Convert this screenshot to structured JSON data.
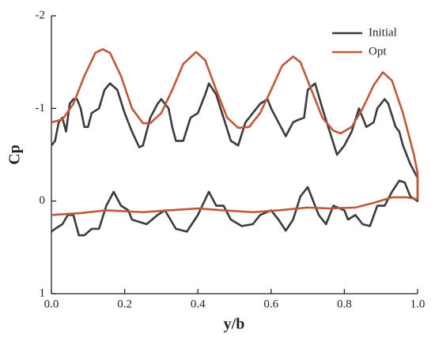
{
  "chart_data": {
    "type": "line",
    "xlabel": "y/b",
    "ylabel": "Cp",
    "xlim": [
      0,
      1
    ],
    "ylim": [
      -2,
      1
    ],
    "y_inverted": true,
    "xticks": [
      {
        "value": 0,
        "label": "0.0"
      },
      0.2,
      0.4,
      0.6,
      0.8,
      {
        "value": 1,
        "label": "1.0"
      }
    ],
    "yticks": [
      -2,
      -1,
      0,
      1
    ],
    "grid": false,
    "legend": "upper right",
    "series": [
      {
        "name": "Initial",
        "color": "#3b3b3f",
        "x": [
          0.0,
          0.01,
          0.02,
          0.03,
          0.04,
          0.05,
          0.06,
          0.07,
          0.08,
          0.09,
          0.1,
          0.11,
          0.13,
          0.145,
          0.16,
          0.18,
          0.2,
          0.22,
          0.24,
          0.25,
          0.27,
          0.29,
          0.3,
          0.32,
          0.33,
          0.34,
          0.36,
          0.38,
          0.4,
          0.42,
          0.43,
          0.45,
          0.47,
          0.49,
          0.51,
          0.53,
          0.55,
          0.57,
          0.59,
          0.6,
          0.62,
          0.64,
          0.66,
          0.67,
          0.69,
          0.7,
          0.72,
          0.74,
          0.76,
          0.78,
          0.8,
          0.82,
          0.84,
          0.85,
          0.86,
          0.88,
          0.89,
          0.91,
          0.92,
          0.94,
          0.95,
          0.96,
          0.98,
          1.0,
          1.0,
          0.98,
          0.965,
          0.95,
          0.93,
          0.91,
          0.89,
          0.87,
          0.85,
          0.83,
          0.81,
          0.8,
          0.77,
          0.75,
          0.73,
          0.7,
          0.68,
          0.66,
          0.64,
          0.62,
          0.6,
          0.57,
          0.55,
          0.52,
          0.49,
          0.47,
          0.45,
          0.43,
          0.4,
          0.37,
          0.34,
          0.31,
          0.29,
          0.26,
          0.22,
          0.21,
          0.19,
          0.17,
          0.15,
          0.13,
          0.11,
          0.09,
          0.075,
          0.06,
          0.045,
          0.03,
          0.01,
          0.0
        ],
        "values": [
          -0.6,
          -0.65,
          -0.85,
          -0.9,
          -0.75,
          -1.05,
          -1.1,
          -1.1,
          -1.0,
          -0.8,
          -0.8,
          -0.95,
          -1.0,
          -1.2,
          -1.27,
          -1.2,
          -0.95,
          -0.75,
          -0.58,
          -0.6,
          -0.9,
          -1.05,
          -1.1,
          -1.0,
          -0.8,
          -0.65,
          -0.65,
          -0.9,
          -0.95,
          -1.15,
          -1.27,
          -1.15,
          -0.9,
          -0.65,
          -0.6,
          -0.85,
          -0.95,
          -1.05,
          -1.1,
          -1.0,
          -0.85,
          -0.7,
          -0.85,
          -0.87,
          -0.9,
          -1.2,
          -1.27,
          -1.0,
          -0.75,
          -0.5,
          -0.6,
          -0.75,
          -1.0,
          -0.9,
          -0.8,
          -0.85,
          -1.0,
          -1.1,
          -1.05,
          -0.8,
          -0.75,
          -0.6,
          -0.4,
          -0.25,
          0.0,
          -0.05,
          -0.2,
          -0.22,
          -0.1,
          0.05,
          0.05,
          0.27,
          0.25,
          0.15,
          0.2,
          0.1,
          0.05,
          0.25,
          0.15,
          -0.15,
          -0.05,
          0.2,
          0.32,
          0.2,
          0.1,
          0.15,
          0.25,
          0.27,
          0.2,
          0.05,
          0.05,
          -0.1,
          0.15,
          0.33,
          0.3,
          0.1,
          0.15,
          0.25,
          0.2,
          0.1,
          0.05,
          -0.1,
          0.05,
          0.3,
          0.3,
          0.37,
          0.37,
          0.15,
          0.15,
          0.25,
          0.3,
          0.33
        ]
      },
      {
        "name": "Opt",
        "color": "#c0583a",
        "x": [
          0.0,
          0.03,
          0.06,
          0.09,
          0.12,
          0.14,
          0.16,
          0.19,
          0.22,
          0.25,
          0.27,
          0.3,
          0.33,
          0.36,
          0.395,
          0.42,
          0.45,
          0.48,
          0.51,
          0.54,
          0.57,
          0.6,
          0.63,
          0.66,
          0.68,
          0.71,
          0.74,
          0.77,
          0.79,
          0.82,
          0.85,
          0.88,
          0.905,
          0.93,
          0.96,
          0.99,
          1.0,
          1.0,
          0.97,
          0.93,
          0.88,
          0.83,
          0.76,
          0.7,
          0.62,
          0.55,
          0.47,
          0.4,
          0.32,
          0.25,
          0.15,
          0.08,
          0.0
        ],
        "values": [
          -0.85,
          -0.88,
          -1.05,
          -1.35,
          -1.6,
          -1.64,
          -1.6,
          -1.35,
          -1.0,
          -0.84,
          -0.84,
          -0.95,
          -1.2,
          -1.48,
          -1.61,
          -1.52,
          -1.2,
          -0.9,
          -0.79,
          -0.8,
          -0.95,
          -1.2,
          -1.46,
          -1.56,
          -1.5,
          -1.2,
          -0.9,
          -0.76,
          -0.73,
          -0.8,
          -1.0,
          -1.25,
          -1.39,
          -1.3,
          -0.95,
          -0.5,
          -0.3,
          -0.02,
          -0.04,
          -0.04,
          0.02,
          0.07,
          0.08,
          0.07,
          0.1,
          0.12,
          0.1,
          0.08,
          0.1,
          0.12,
          0.1,
          0.13,
          0.15
        ]
      }
    ]
  }
}
